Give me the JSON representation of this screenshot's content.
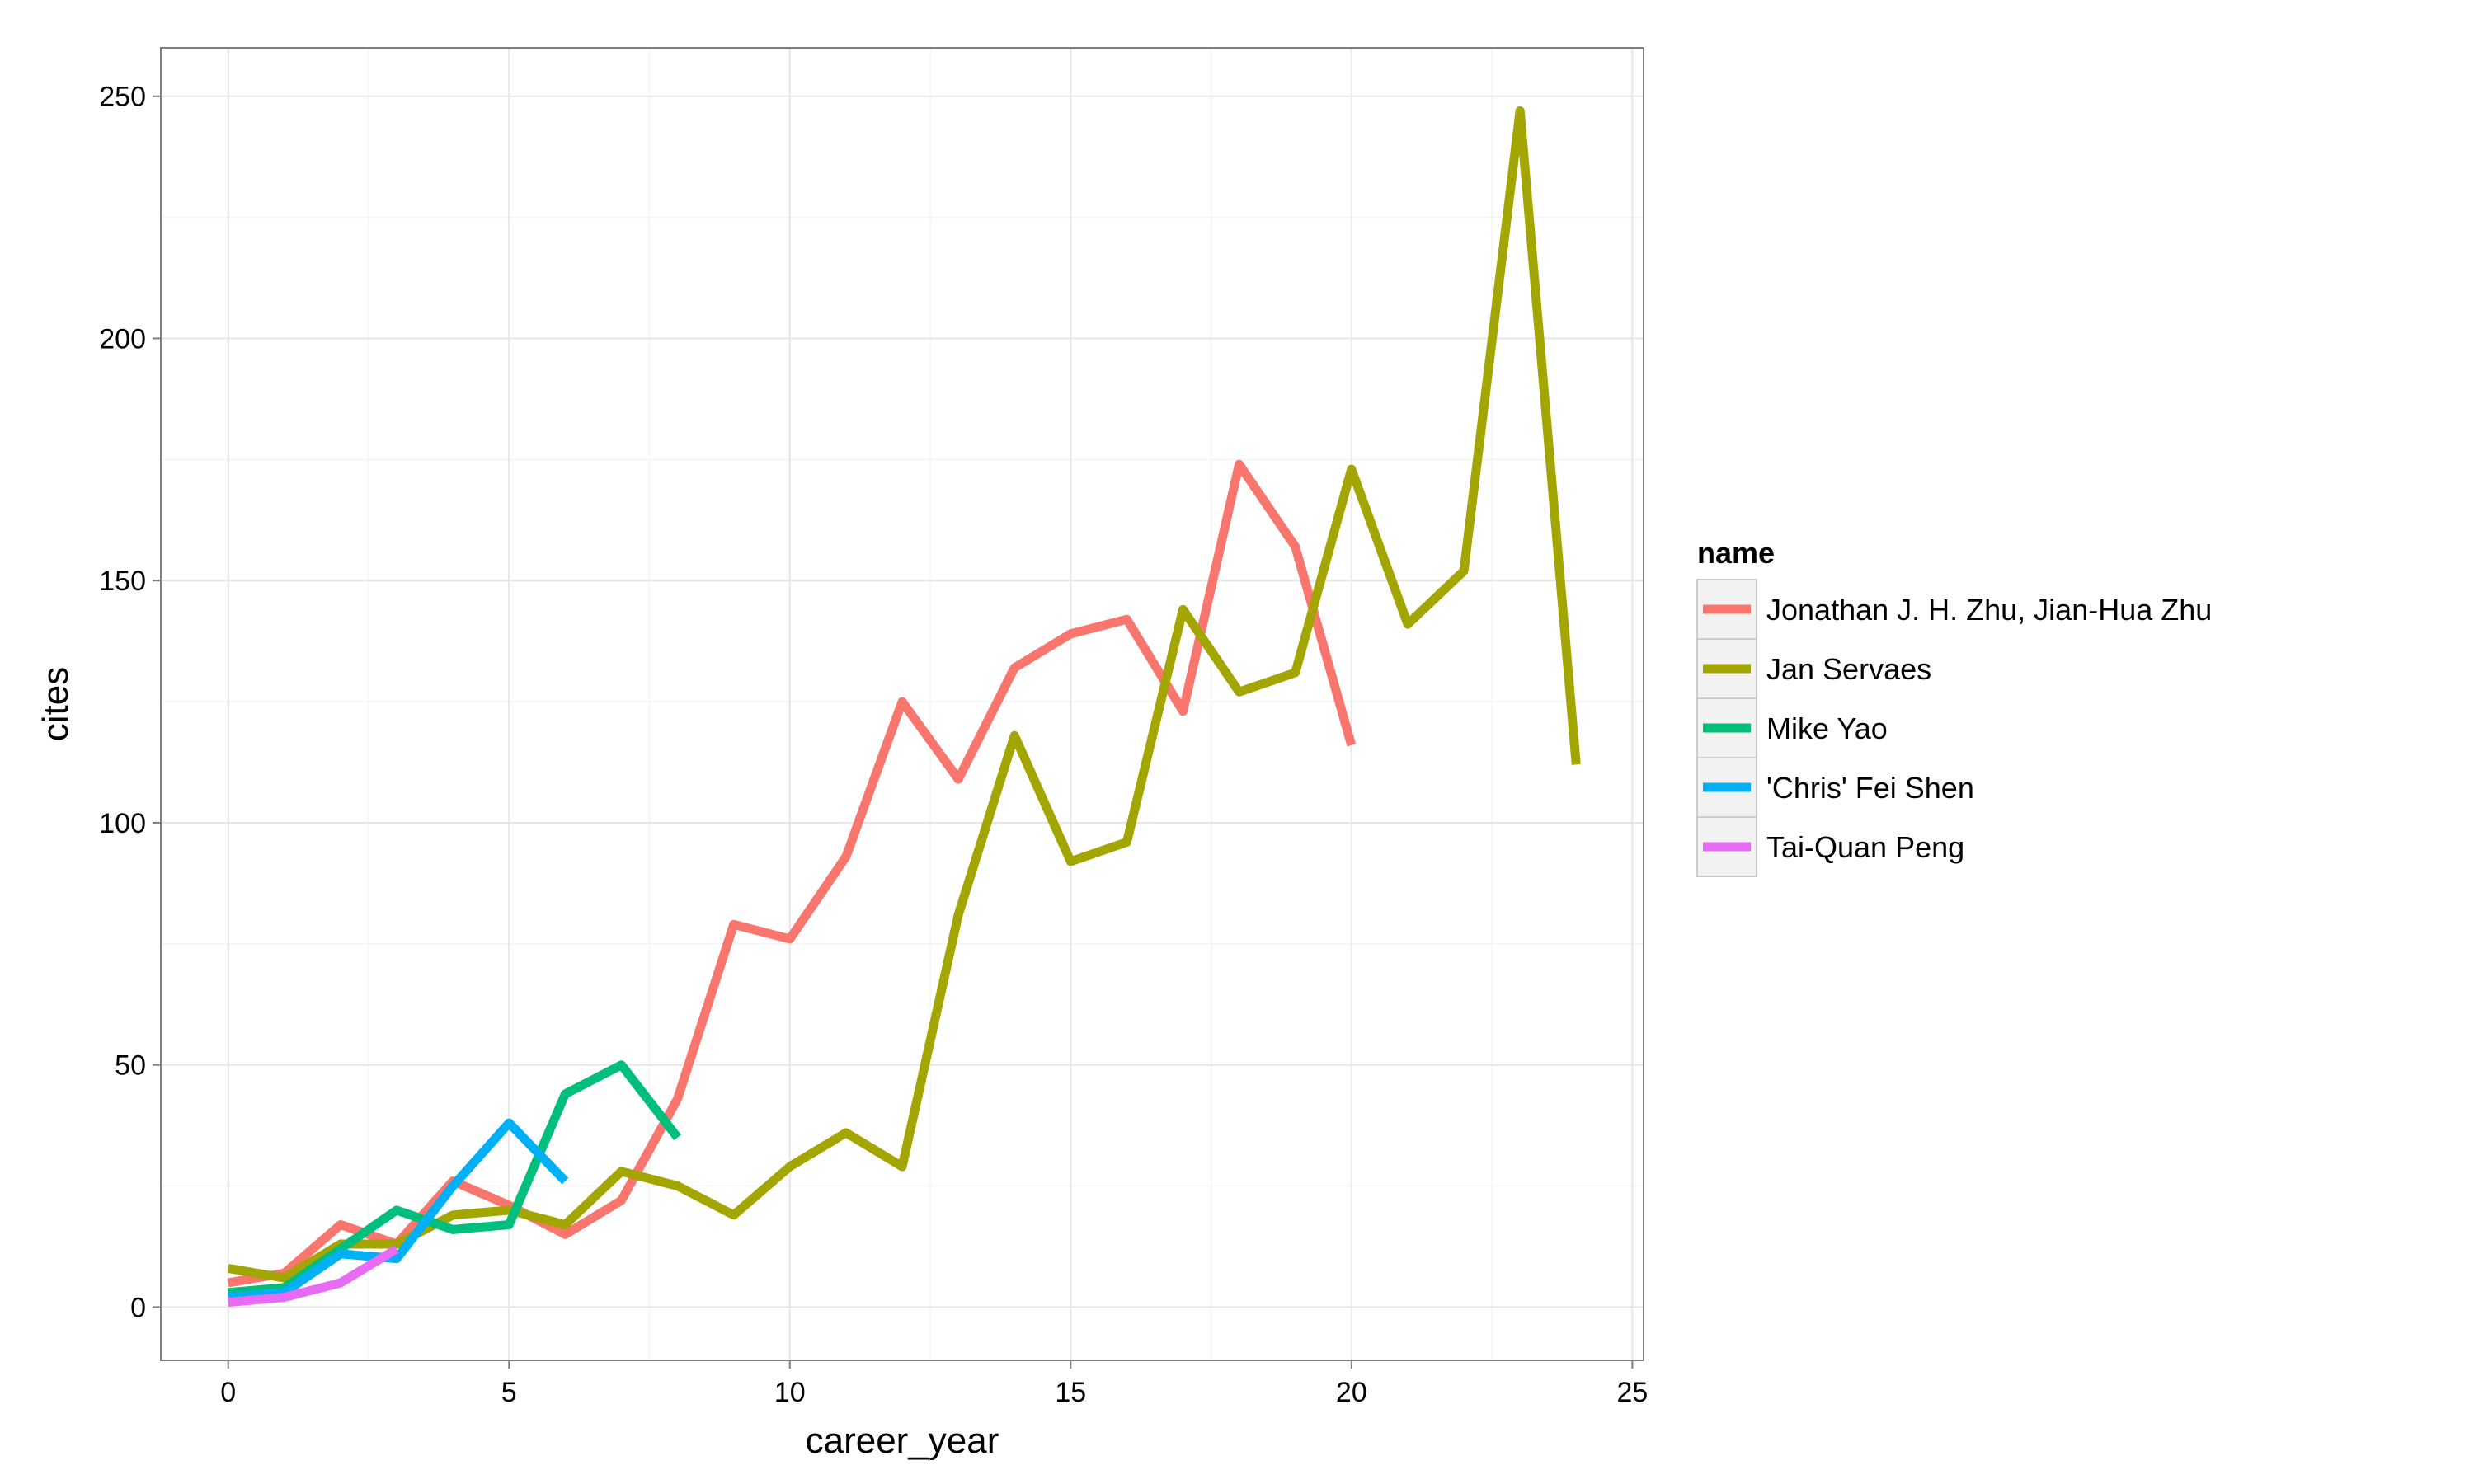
{
  "chart_data": {
    "type": "line",
    "xlabel": "career_year",
    "ylabel": "cites",
    "xlim": [
      -1.2,
      25.2
    ],
    "ylim": [
      -11,
      260
    ],
    "x_ticks": [
      0,
      5,
      10,
      15,
      20,
      25
    ],
    "y_ticks": [
      0,
      50,
      100,
      150,
      200,
      250
    ],
    "grid": true,
    "legend_title": "name",
    "legend_position": "right",
    "series": [
      {
        "name": "Jonathan J. H. Zhu, Jian-Hua Zhu",
        "color": "#F8766D",
        "x": [
          0,
          1,
          2,
          3,
          4,
          5,
          6,
          7,
          8,
          9,
          10,
          11,
          12,
          13,
          14,
          15,
          16,
          17,
          18,
          19,
          20
        ],
        "values": [
          5,
          7,
          17,
          13,
          26,
          21,
          15,
          22,
          43,
          79,
          76,
          93,
          125,
          109,
          132,
          139,
          142,
          123,
          174,
          157,
          116
        ]
      },
      {
        "name": "Jan Servaes",
        "color": "#A3A500",
        "x": [
          0,
          1,
          2,
          3,
          4,
          5,
          6,
          7,
          8,
          9,
          10,
          11,
          12,
          13,
          14,
          15,
          16,
          17,
          18,
          19,
          20,
          21,
          22,
          23,
          24
        ],
        "values": [
          8,
          6,
          13,
          13,
          19,
          20,
          17,
          28,
          25,
          19,
          29,
          36,
          29,
          81,
          118,
          92,
          96,
          144,
          127,
          131,
          173,
          141,
          152,
          247,
          112
        ]
      },
      {
        "name": "Mike Yao",
        "color": "#00BF7D",
        "x": [
          0,
          1,
          2,
          3,
          4,
          5,
          6,
          7,
          8
        ],
        "values": [
          3,
          4,
          12,
          20,
          16,
          17,
          44,
          50,
          35
        ]
      },
      {
        "name": "'Chris' Fei Shen",
        "color": "#00B0F6",
        "x": [
          0,
          1,
          2,
          3,
          4,
          5,
          6
        ],
        "values": [
          2,
          3,
          11,
          10,
          25,
          38,
          26
        ]
      },
      {
        "name": "Tai-Quan Peng",
        "color": "#E76BF3",
        "x": [
          0,
          1,
          2,
          3
        ],
        "values": [
          1,
          2,
          5,
          12
        ]
      }
    ]
  }
}
